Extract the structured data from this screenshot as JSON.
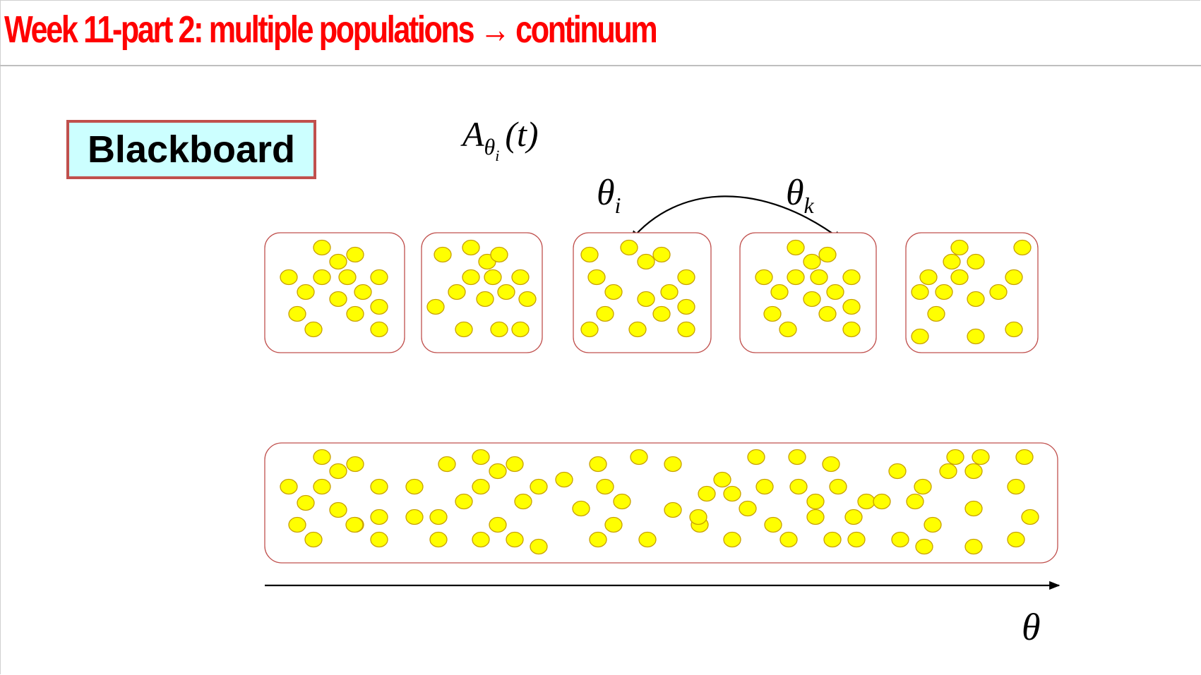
{
  "title": "Week 11-part 2:  multiple populations → continuum",
  "blackboard_label": "Blackboard",
  "labels": {
    "activity_A": "A",
    "activity_sub_theta": "θ",
    "activity_sub_i": "i",
    "activity_arg": "(t)",
    "theta_i_symbol": "θ",
    "theta_i_sub": "i",
    "theta_k_symbol": "θ",
    "theta_k_sub": "k",
    "axis_theta": "θ"
  },
  "colors": {
    "title": "#ff0000",
    "box_border": "#c0504d",
    "blackboard_fill": "#ccffff",
    "dot_fill": "#ffff00"
  },
  "population_count": 5
}
